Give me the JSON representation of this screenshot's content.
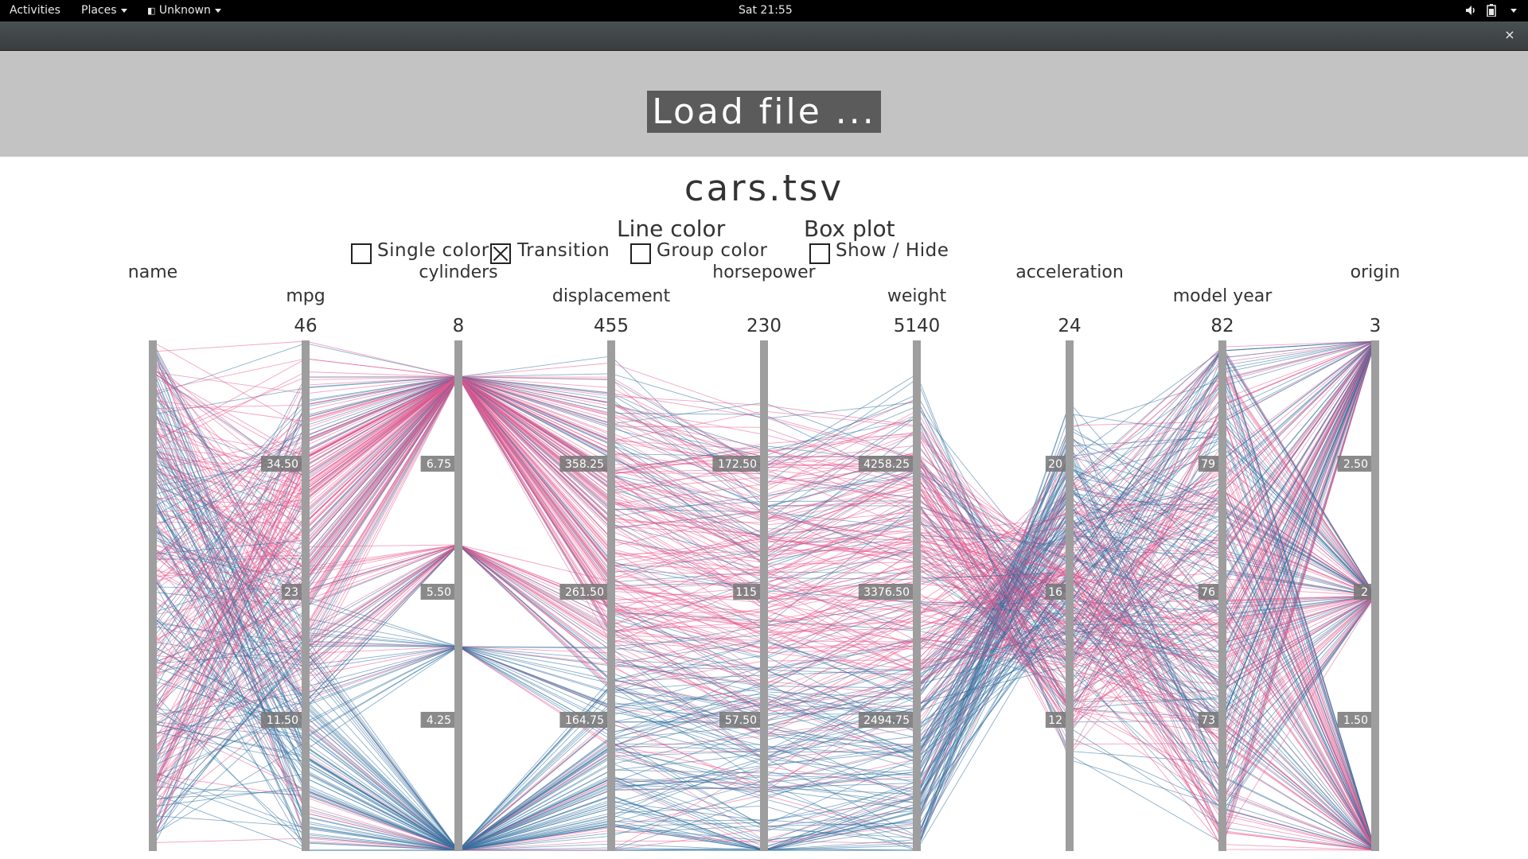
{
  "topbar": {
    "activities": "Activities",
    "places": "Places",
    "app_name": "Unknown",
    "clock": "Sat 21:55"
  },
  "window": {
    "close_glyph": "×"
  },
  "header": {
    "load_button": "Load file ..."
  },
  "file_title": "cars.tsv",
  "controls": {
    "line_color_heading": "Line color",
    "box_plot_heading": "Box plot",
    "single_color": {
      "label": "Single color",
      "checked": false
    },
    "transition": {
      "label": "Transition",
      "checked": true
    },
    "group_color": {
      "label": "Group color",
      "checked": false
    },
    "show_hide": {
      "label": "Show / Hide",
      "checked": false
    }
  },
  "colors": {
    "pink": "#e8578e",
    "blue": "#2f6f9e",
    "axis": "#9e9e9e",
    "tick_bg": "#767676"
  },
  "chart_data": {
    "type": "parallel-coordinates",
    "title": "cars.tsv",
    "axes": [
      {
        "name": "name",
        "max": "",
        "ticks": []
      },
      {
        "name": "mpg",
        "max": "46",
        "ticks": [
          "34.50",
          "23",
          "11.50"
        ]
      },
      {
        "name": "cylinders",
        "max": "8",
        "ticks": [
          "6.75",
          "5.50",
          "4.25"
        ]
      },
      {
        "name": "displacement",
        "max": "455",
        "ticks": [
          "358.25",
          "261.50",
          "164.75"
        ]
      },
      {
        "name": "horsepower",
        "max": "230",
        "ticks": [
          "172.50",
          "115",
          "57.50"
        ]
      },
      {
        "name": "weight",
        "max": "5140",
        "ticks": [
          "4258.25",
          "3376.50",
          "2494.75"
        ]
      },
      {
        "name": "acceleration",
        "max": "24",
        "ticks": [
          "20",
          "16",
          "12"
        ]
      },
      {
        "name": "model year",
        "max": "82",
        "ticks": [
          "79",
          "76",
          "73"
        ]
      },
      {
        "name": "origin",
        "max": "3",
        "ticks": [
          "2.50",
          "2",
          "1.50"
        ]
      }
    ]
  }
}
